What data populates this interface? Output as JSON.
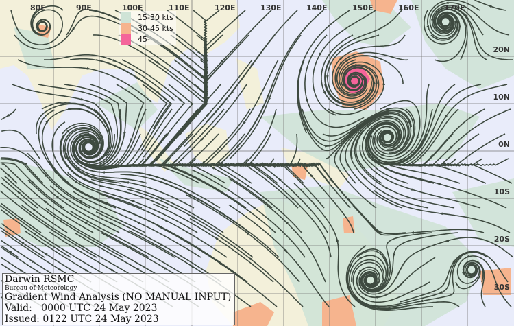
{
  "map": {
    "longitude_labels": [
      "80E",
      "90E",
      "100E",
      "110E",
      "120E",
      "130E",
      "140E",
      "150E",
      "160E",
      "170E"
    ],
    "latitude_labels": [
      "20N",
      "10N",
      "0N",
      "10S",
      "20S",
      "30S"
    ]
  },
  "legend": {
    "items": [
      {
        "label": "15-30 kts",
        "color": "#cfe3d6"
      },
      {
        "label": "30-45 kts",
        "color": "#f6b48e"
      },
      {
        "label": "45-",
        "color": "#f4649a"
      }
    ]
  },
  "info": {
    "centre": "Darwin RSMC",
    "agency": "Bureau of Meteorology",
    "product": "Gradient Wind Analysis (NO MANUAL INPUT)",
    "valid": "Valid:   0000 UTC 24 May 2023",
    "issued": "Issued: 0122 UTC 24 May 2023"
  },
  "colors": {
    "ocean": "#e9ecfa",
    "land": "#f3f0da",
    "coastline": "#6c7cf0",
    "streamline": "#3e4a40",
    "grid": "#666666"
  }
}
